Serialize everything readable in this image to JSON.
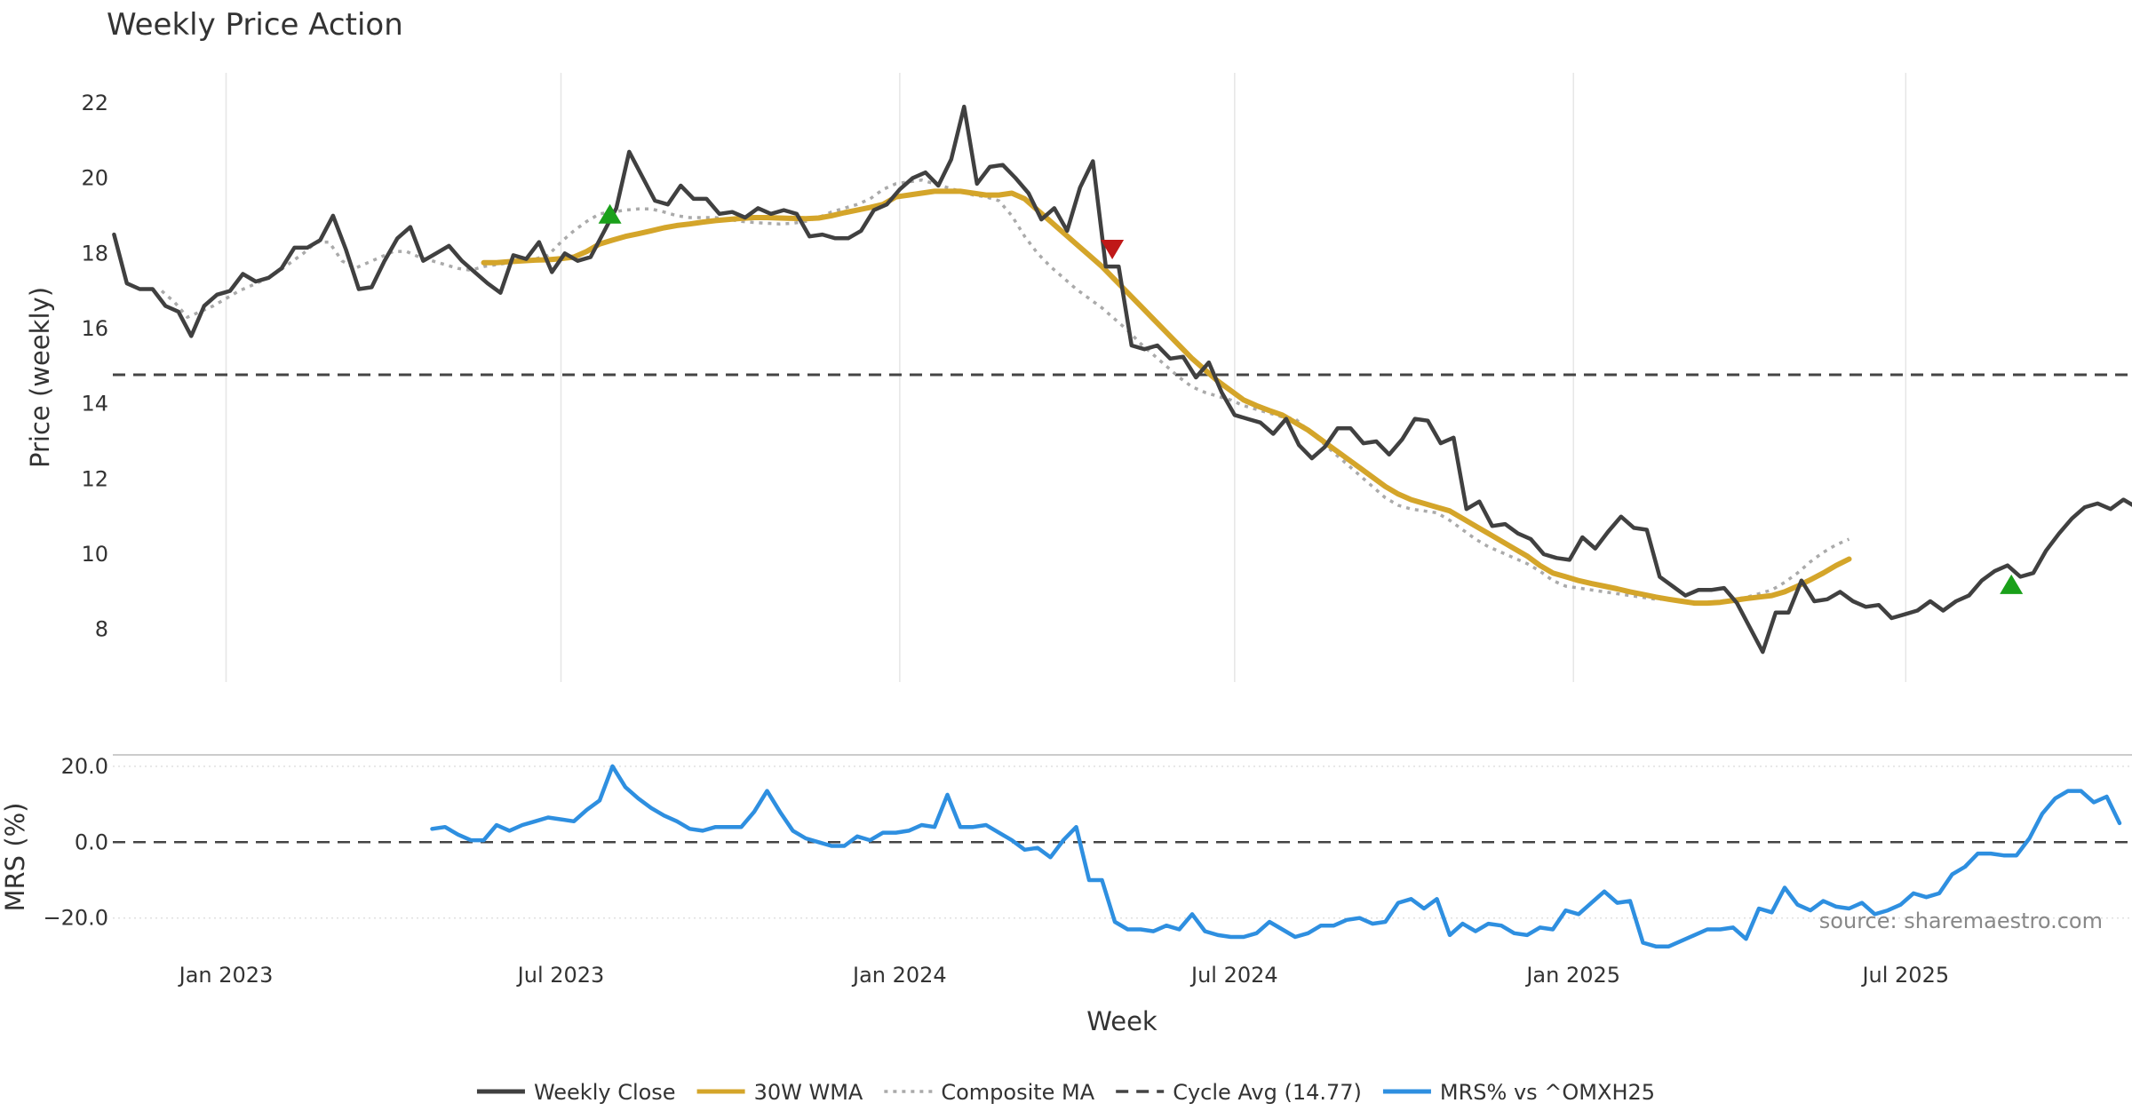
{
  "chart_data": [
    {
      "type": "line",
      "title": "Weekly Price Action",
      "ylabel": "Price (weekly)",
      "xlabel": "Week",
      "ylim": [
        6.6,
        22.8
      ],
      "yticks": [
        8,
        10,
        12,
        14,
        16,
        18,
        20,
        22
      ],
      "x_tick_labels": [
        "Jan 2023",
        "Jul 2023",
        "Jan 2024",
        "Jul 2024",
        "Jan 2025",
        "Jul 2025"
      ],
      "x_tick_weeks": [
        8,
        34,
        60.3,
        86.3,
        112.6,
        138.4
      ],
      "grid": "vertical",
      "series": [
        {
          "name": "Weekly Close",
          "color": "#404040",
          "start_week": -0.7,
          "values": [
            18.5,
            17.2,
            17.05,
            17.05,
            16.6,
            16.45,
            15.8,
            16.6,
            16.9,
            17.0,
            17.45,
            17.25,
            17.35,
            17.6,
            18.15,
            18.15,
            18.35,
            19.0,
            18.1,
            17.05,
            17.1,
            17.8,
            18.4,
            18.7,
            17.8,
            18.0,
            18.2,
            17.8,
            17.5,
            17.2,
            16.95,
            17.95,
            17.85,
            18.3,
            17.5,
            18.0,
            17.8,
            17.9,
            18.55,
            19.2,
            20.7,
            20.05,
            19.4,
            19.3,
            19.8,
            19.45,
            19.45,
            19.05,
            19.1,
            18.95,
            19.2,
            19.05,
            19.15,
            19.05,
            18.45,
            18.5,
            18.4,
            18.4,
            18.6,
            19.15,
            19.3,
            19.7,
            20.0,
            20.15,
            19.8,
            20.5,
            21.9,
            19.85,
            20.3,
            20.35,
            20.0,
            19.6,
            18.9,
            19.2,
            18.6,
            19.75,
            20.45,
            17.65,
            17.65,
            15.55,
            15.45,
            15.55,
            15.2,
            15.25,
            14.7,
            15.1,
            14.3,
            13.7,
            13.6,
            13.5,
            13.2,
            13.6,
            12.9,
            12.55,
            12.85,
            13.35,
            13.35,
            12.95,
            13.0,
            12.65,
            13.05,
            13.6,
            13.55,
            12.95,
            13.1,
            11.2,
            11.4,
            10.75,
            10.8,
            10.55,
            10.4,
            10.0,
            9.9,
            9.85,
            10.45,
            10.15,
            10.6,
            11.0,
            10.7,
            10.65,
            9.4,
            9.15,
            8.9,
            9.05,
            9.05,
            9.1,
            8.7,
            8.05,
            7.4,
            8.45,
            8.45,
            9.3,
            8.75,
            8.8,
            9.0,
            8.75,
            8.6,
            8.65,
            8.3,
            8.4,
            8.5,
            8.75,
            8.5,
            8.75,
            8.9,
            9.3,
            9.55,
            9.7,
            9.4,
            9.5,
            10.1,
            10.55,
            10.95,
            11.25,
            11.35,
            11.2,
            11.45,
            11.25
          ]
        },
        {
          "name": "30W WMA",
          "color": "#D4A52A",
          "start_week": 28,
          "values": [
            17.75,
            17.75,
            17.78,
            17.8,
            17.82,
            17.83,
            17.86,
            17.9,
            18.05,
            18.25,
            18.35,
            18.45,
            18.52,
            18.6,
            18.68,
            18.74,
            18.78,
            18.83,
            18.87,
            18.9,
            18.93,
            18.95,
            18.95,
            18.94,
            18.93,
            18.92,
            18.94,
            19.0,
            19.08,
            19.15,
            19.22,
            19.3,
            19.5,
            19.55,
            19.6,
            19.65,
            19.65,
            19.65,
            19.6,
            19.55,
            19.55,
            19.6,
            19.45,
            19.15,
            18.85,
            18.55,
            18.25,
            17.95,
            17.65,
            17.3,
            16.95,
            16.6,
            16.25,
            15.9,
            15.55,
            15.2,
            14.9,
            14.6,
            14.35,
            14.1,
            13.95,
            13.82,
            13.7,
            13.5,
            13.3,
            13.05,
            12.8,
            12.55,
            12.3,
            12.05,
            11.8,
            11.6,
            11.45,
            11.35,
            11.25,
            11.15,
            10.95,
            10.75,
            10.55,
            10.35,
            10.15,
            9.95,
            9.7,
            9.5,
            9.4,
            9.3,
            9.22,
            9.15,
            9.08,
            9.0,
            8.93,
            8.86,
            8.8,
            8.75,
            8.7,
            8.7,
            8.72,
            8.77,
            8.82,
            8.86,
            8.9,
            9.0,
            9.15,
            9.32,
            9.5,
            9.7,
            9.87
          ]
        },
        {
          "name": "Composite MA",
          "color": "#aaaaaa",
          "start_week": 3,
          "values": [
            17.0,
            16.7,
            16.3,
            16.45,
            16.6,
            16.8,
            17.0,
            17.15,
            17.3,
            17.5,
            17.75,
            18.0,
            18.3,
            18.3,
            17.8,
            17.6,
            17.75,
            17.9,
            18.05,
            18.05,
            17.9,
            17.8,
            17.7,
            17.6,
            17.55,
            17.65,
            17.7,
            17.75,
            17.8,
            17.85,
            17.95,
            18.3,
            18.6,
            18.85,
            19.05,
            19.1,
            19.15,
            19.18,
            19.18,
            19.1,
            19.0,
            18.95,
            18.95,
            18.95,
            18.9,
            18.85,
            18.82,
            18.8,
            18.78,
            18.8,
            18.85,
            18.95,
            19.1,
            19.2,
            19.3,
            19.45,
            19.7,
            19.85,
            19.9,
            19.95,
            19.85,
            19.75,
            19.65,
            19.55,
            19.5,
            19.4,
            19.0,
            18.45,
            18.0,
            17.65,
            17.35,
            17.05,
            16.8,
            16.55,
            16.25,
            15.95,
            15.6,
            15.3,
            15.0,
            14.7,
            14.45,
            14.3,
            14.2,
            14.1,
            13.95,
            13.85,
            13.75,
            13.65,
            13.6,
            13.3,
            13.0,
            12.7,
            12.4,
            12.1,
            11.8,
            11.5,
            11.3,
            11.2,
            11.15,
            11.1,
            10.9,
            10.65,
            10.4,
            10.2,
            10.05,
            9.9,
            9.75,
            9.55,
            9.3,
            9.15,
            9.1,
            9.05,
            9.0,
            8.95,
            8.9,
            8.85,
            8.8,
            8.8,
            8.75,
            8.72,
            8.72,
            8.75,
            8.8,
            8.85,
            8.95,
            9.05,
            9.25,
            9.5,
            9.8,
            10.05,
            10.25,
            10.4
          ]
        }
      ],
      "reference_line": {
        "name": "Cycle Avg (14.77)",
        "value": 14.77,
        "color": "#444444"
      },
      "markers": [
        {
          "kind": "buy",
          "week": 37.8,
          "value": 19.05,
          "color": "#1aa01a"
        },
        {
          "kind": "sell",
          "week": 76.8,
          "value": 18.1,
          "color": "#c01818"
        },
        {
          "kind": "buy",
          "week": 146.6,
          "value": 9.2,
          "color": "#1aa01a"
        }
      ]
    },
    {
      "type": "line",
      "ylabel": "MRS (%)",
      "ylim": [
        -28.5,
        23
      ],
      "yticks": [
        -20,
        0,
        20
      ],
      "ytick_labels": [
        "−20.0",
        "0.0",
        "20.0"
      ],
      "grid": "horizontal-dotted",
      "series": [
        {
          "name": "MRS% vs ^OMXH25",
          "color": "#2E8FE0",
          "start_week": 24,
          "values": [
            3.5,
            4.0,
            2.0,
            0.5,
            0.5,
            4.5,
            3.0,
            4.5,
            5.5,
            6.5,
            6.0,
            5.5,
            8.5,
            11.0,
            20.0,
            14.5,
            11.5,
            9.0,
            7.0,
            5.5,
            3.5,
            3.0,
            4.0,
            4.0,
            4.0,
            8.0,
            13.5,
            8.0,
            3.0,
            1.0,
            0.0,
            -1.0,
            -1.0,
            1.5,
            0.5,
            2.5,
            2.5,
            3.0,
            4.5,
            4.0,
            12.5,
            4.0,
            4.0,
            4.5,
            2.5,
            0.5,
            -2.0,
            -1.5,
            -4.0,
            0.5,
            4.0,
            -10.0,
            -10.0,
            -21.0,
            -23.0,
            -23.0,
            -23.5,
            -22.0,
            -23.0,
            -19.0,
            -23.5,
            -24.5,
            -25.0,
            -25.0,
            -24.0,
            -21.0,
            -23.0,
            -25.0,
            -24.0,
            -22.0,
            -22.0,
            -20.5,
            -20.0,
            -21.5,
            -21.0,
            -16.0,
            -15.0,
            -17.5,
            -15.0,
            -24.5,
            -21.5,
            -23.5,
            -21.5,
            -22.0,
            -24.0,
            -24.5,
            -22.5,
            -23.0,
            -18.0,
            -19.0,
            -16.0,
            -13.0,
            -16.0,
            -15.5,
            -26.5,
            -27.5,
            -27.5,
            -26.0,
            -24.5,
            -23.0,
            -23.0,
            -22.5,
            -25.5,
            -17.5,
            -18.5,
            -12.0,
            -16.5,
            -18.0,
            -15.5,
            -17.0,
            -17.5,
            -16.0,
            -19.0,
            -18.0,
            -16.5,
            -13.5,
            -14.5,
            -13.5,
            -8.5,
            -6.5,
            -3.0,
            -3.0,
            -3.5,
            -3.5,
            1.0,
            7.5,
            11.5,
            13.5,
            13.5,
            10.5,
            12.0,
            5.0
          ]
        }
      ],
      "reference_line": {
        "value": 0,
        "color": "#444444"
      },
      "source_note": "source: sharemaestro.com"
    }
  ],
  "legend": {
    "placement": "bottom-center",
    "items": [
      {
        "label": "Weekly Close",
        "color": "#404040",
        "style": "solid"
      },
      {
        "label": "30W WMA",
        "color": "#D4A52A",
        "style": "solid"
      },
      {
        "label": "Composite MA",
        "color": "#aaaaaa",
        "style": "dotted"
      },
      {
        "label": "Cycle Avg (14.77)",
        "color": "#444444",
        "style": "dashed"
      },
      {
        "label": "MRS% vs ^OMXH25",
        "color": "#2E8FE0",
        "style": "solid"
      }
    ]
  }
}
